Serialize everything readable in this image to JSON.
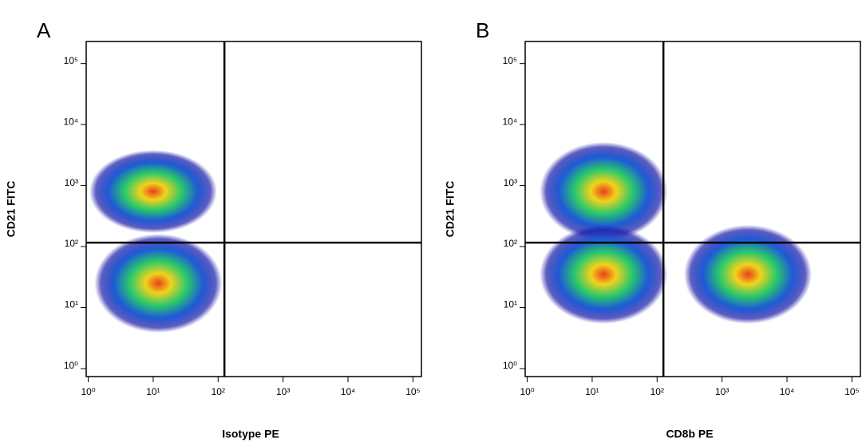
{
  "chart_data": [
    {
      "type": "density",
      "title": "A",
      "xlabel": "Isotype PE",
      "ylabel": "CD21 FITC",
      "xscale": "log",
      "yscale": "log",
      "xlim": [
        0.93,
        135000
      ],
      "ylim": [
        0.74,
        230000
      ],
      "xticks": [
        {
          "value": 1,
          "label": "10⁰"
        },
        {
          "value": 10,
          "label": "10¹"
        },
        {
          "value": 100,
          "label": "10²"
        },
        {
          "value": 1000,
          "label": "10³"
        },
        {
          "value": 10000,
          "label": "10⁴"
        },
        {
          "value": 100000,
          "label": "10⁵"
        }
      ],
      "yticks": [
        {
          "value": 1,
          "label": "10⁰"
        },
        {
          "value": 10,
          "label": "10¹"
        },
        {
          "value": 100,
          "label": "10²"
        },
        {
          "value": 1000,
          "label": "10³"
        },
        {
          "value": 10000,
          "label": "10⁴"
        },
        {
          "value": 100000,
          "label": "10⁵"
        }
      ],
      "gate_x": 125,
      "gate_y": 116,
      "populations": {
        "x": [
          10,
          12
        ],
        "y": [
          800,
          25
        ]
      }
    },
    {
      "type": "density",
      "title": "B",
      "xlabel": "CD8b PE",
      "ylabel": "CD21 FITC",
      "xscale": "log",
      "yscale": "log",
      "xlim": [
        0.93,
        135000
      ],
      "ylim": [
        0.74,
        230000
      ],
      "xticks": [
        {
          "value": 1,
          "label": "10⁰"
        },
        {
          "value": 10,
          "label": "10¹"
        },
        {
          "value": 100,
          "label": "10²"
        },
        {
          "value": 1000,
          "label": "10³"
        },
        {
          "value": 10000,
          "label": "10⁴"
        },
        {
          "value": 100000,
          "label": "10⁵"
        }
      ],
      "yticks": [
        {
          "value": 1,
          "label": "10⁰"
        },
        {
          "value": 10,
          "label": "10¹"
        },
        {
          "value": 100,
          "label": "10²"
        },
        {
          "value": 1000,
          "label": "10³"
        },
        {
          "value": 10000,
          "label": "10⁴"
        },
        {
          "value": 100000,
          "label": "10⁵"
        }
      ],
      "gate_x": 125,
      "gate_y": 116,
      "populations": {
        "x": [
          15,
          15,
          2500
        ],
        "y": [
          800,
          35,
          35
        ]
      }
    }
  ]
}
